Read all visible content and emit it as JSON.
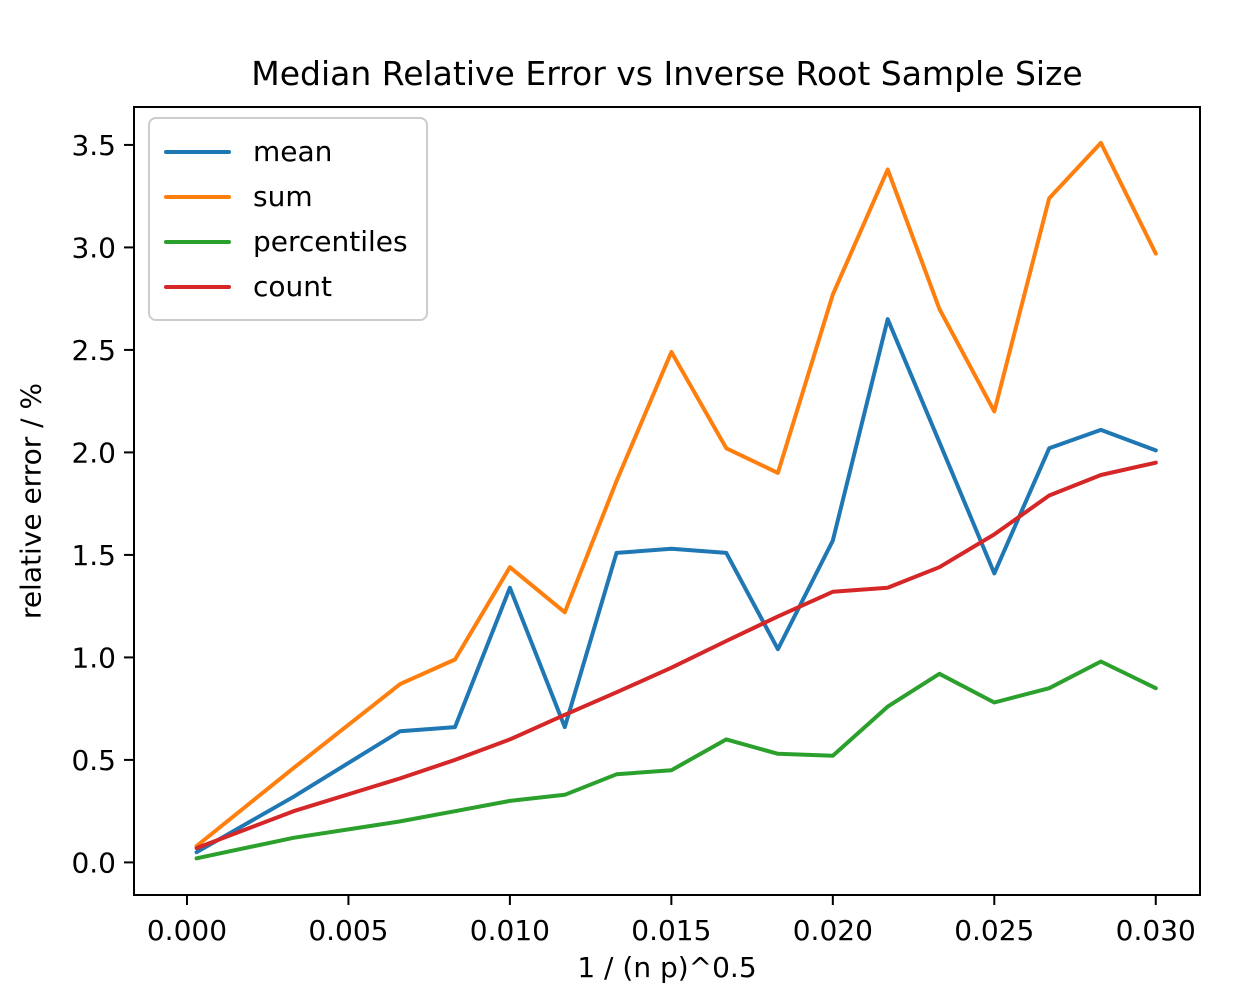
{
  "chart_data": {
    "type": "line",
    "title": "Median Relative Error vs Inverse Root Sample Size",
    "xlabel": "1 / (n p)^0.5",
    "ylabel": "relative error / %",
    "grid": false,
    "background": "#ffffff",
    "axis_color": "#000000",
    "legend": {
      "position": "upper left",
      "items": [
        "mean",
        "sum",
        "percentiles",
        "count"
      ]
    },
    "xlim": [
      -0.00164,
      0.03137
    ],
    "ylim": [
      -0.159,
      3.685
    ],
    "xticks": {
      "values": [
        0.0,
        0.005,
        0.01,
        0.015,
        0.02,
        0.025,
        0.03
      ],
      "labels": [
        "0.000",
        "0.005",
        "0.010",
        "0.015",
        "0.020",
        "0.025",
        "0.030"
      ]
    },
    "yticks": {
      "values": [
        0.0,
        0.5,
        1.0,
        1.5,
        2.0,
        2.5,
        3.0,
        3.5
      ],
      "labels": [
        "0.0",
        "0.5",
        "1.0",
        "1.5",
        "2.0",
        "2.5",
        "3.0",
        "3.5"
      ]
    },
    "x": [
      0.0003,
      0.0033,
      0.0066,
      0.0083,
      0.01,
      0.0117,
      0.0133,
      0.015,
      0.0167,
      0.0183,
      0.02,
      0.0217,
      0.0233,
      0.025,
      0.0267,
      0.0283,
      0.03
    ],
    "series": [
      {
        "name": "mean",
        "color": "#1f77b4",
        "values": [
          0.05,
          0.32,
          0.64,
          0.66,
          1.34,
          0.66,
          1.51,
          1.53,
          1.51,
          1.04,
          1.57,
          2.65,
          2.05,
          1.41,
          2.02,
          2.11,
          2.01
        ]
      },
      {
        "name": "sum",
        "color": "#ff7f0e",
        "values": [
          0.08,
          0.46,
          0.87,
          0.99,
          1.44,
          1.22,
          1.86,
          2.49,
          2.02,
          1.9,
          2.77,
          3.38,
          2.7,
          2.2,
          3.24,
          3.51,
          2.97
        ]
      },
      {
        "name": "percentiles",
        "color": "#2ca02c",
        "values": [
          0.02,
          0.12,
          0.2,
          0.25,
          0.3,
          0.33,
          0.43,
          0.45,
          0.6,
          0.53,
          0.52,
          0.76,
          0.92,
          0.78,
          0.85,
          0.98,
          0.85
        ]
      },
      {
        "name": "count",
        "color": "#d62728",
        "values": [
          0.07,
          0.25,
          0.41,
          0.5,
          0.6,
          0.72,
          0.83,
          0.95,
          1.08,
          1.2,
          1.32,
          1.34,
          1.44,
          1.6,
          1.79,
          1.89,
          1.95
        ]
      }
    ]
  }
}
